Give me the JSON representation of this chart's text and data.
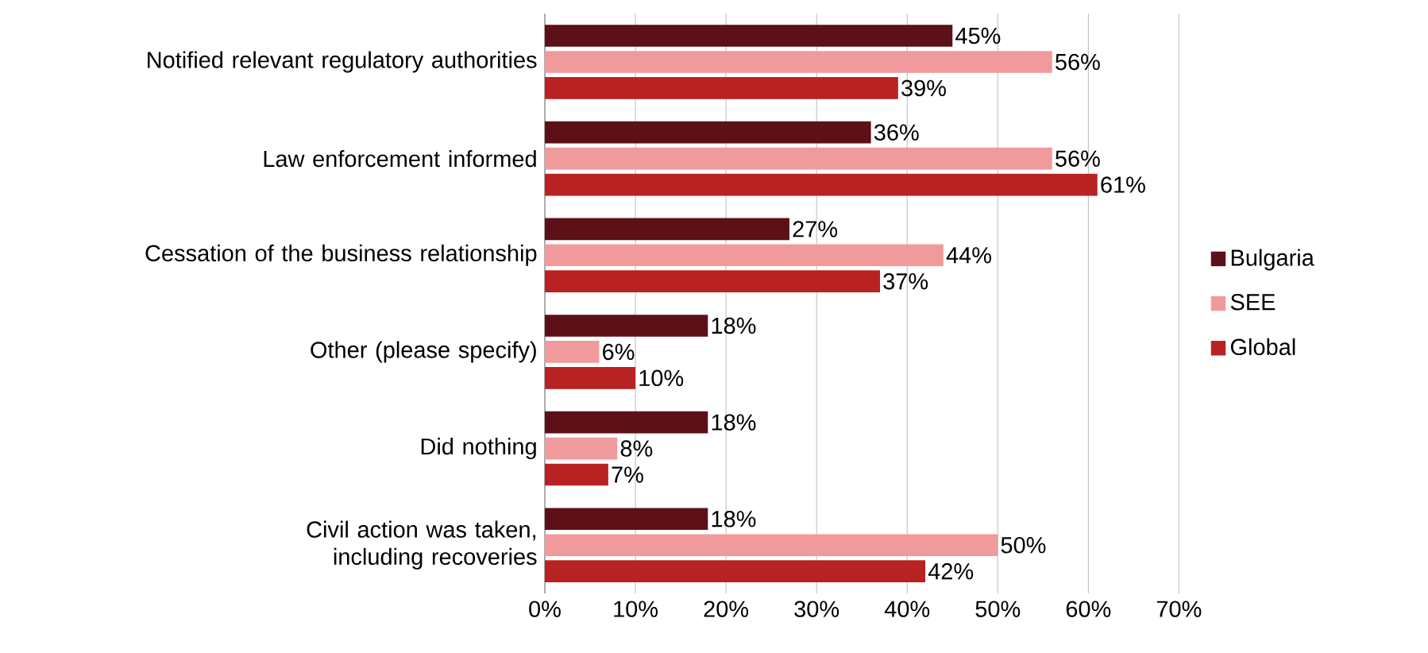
{
  "chart_data": {
    "type": "bar",
    "orientation": "horizontal",
    "categories": [
      "Notified relevant regulatory authorities",
      "Law enforcement informed",
      "Cessation of the business relationship",
      "Other (please specify)",
      "Did nothing",
      "Civil action was taken, including recoveries"
    ],
    "series": [
      {
        "name": "Bulgaria",
        "color": "#5c1018",
        "values": [
          45,
          36,
          27,
          18,
          18,
          18
        ],
        "value_labels": [
          "45%",
          "36%",
          "27%",
          "18%",
          "18%",
          "18%"
        ]
      },
      {
        "name": "SEE",
        "color": "#f09a9c",
        "values": [
          56,
          56,
          44,
          6,
          8,
          50
        ],
        "value_labels": [
          "56%",
          "56%",
          "44%",
          "6%",
          "8%",
          "50%"
        ]
      },
      {
        "name": "Global",
        "color": "#b82222",
        "values": [
          39,
          61,
          37,
          10,
          7,
          42
        ],
        "value_labels": [
          "39%",
          "61%",
          "37%",
          "10%",
          "7%",
          "42%"
        ]
      }
    ],
    "xlim": [
      0,
      70
    ],
    "xticks": [
      {
        "value": 0,
        "label": "0%"
      },
      {
        "value": 10,
        "label": "10%"
      },
      {
        "value": 20,
        "label": "20%"
      },
      {
        "value": 30,
        "label": "30%"
      },
      {
        "value": 40,
        "label": "40%"
      },
      {
        "value": 50,
        "label": "50%"
      },
      {
        "value": 60,
        "label": "60%"
      },
      {
        "value": 70,
        "label": "70%"
      }
    ],
    "grid": "x",
    "legend": "right"
  }
}
